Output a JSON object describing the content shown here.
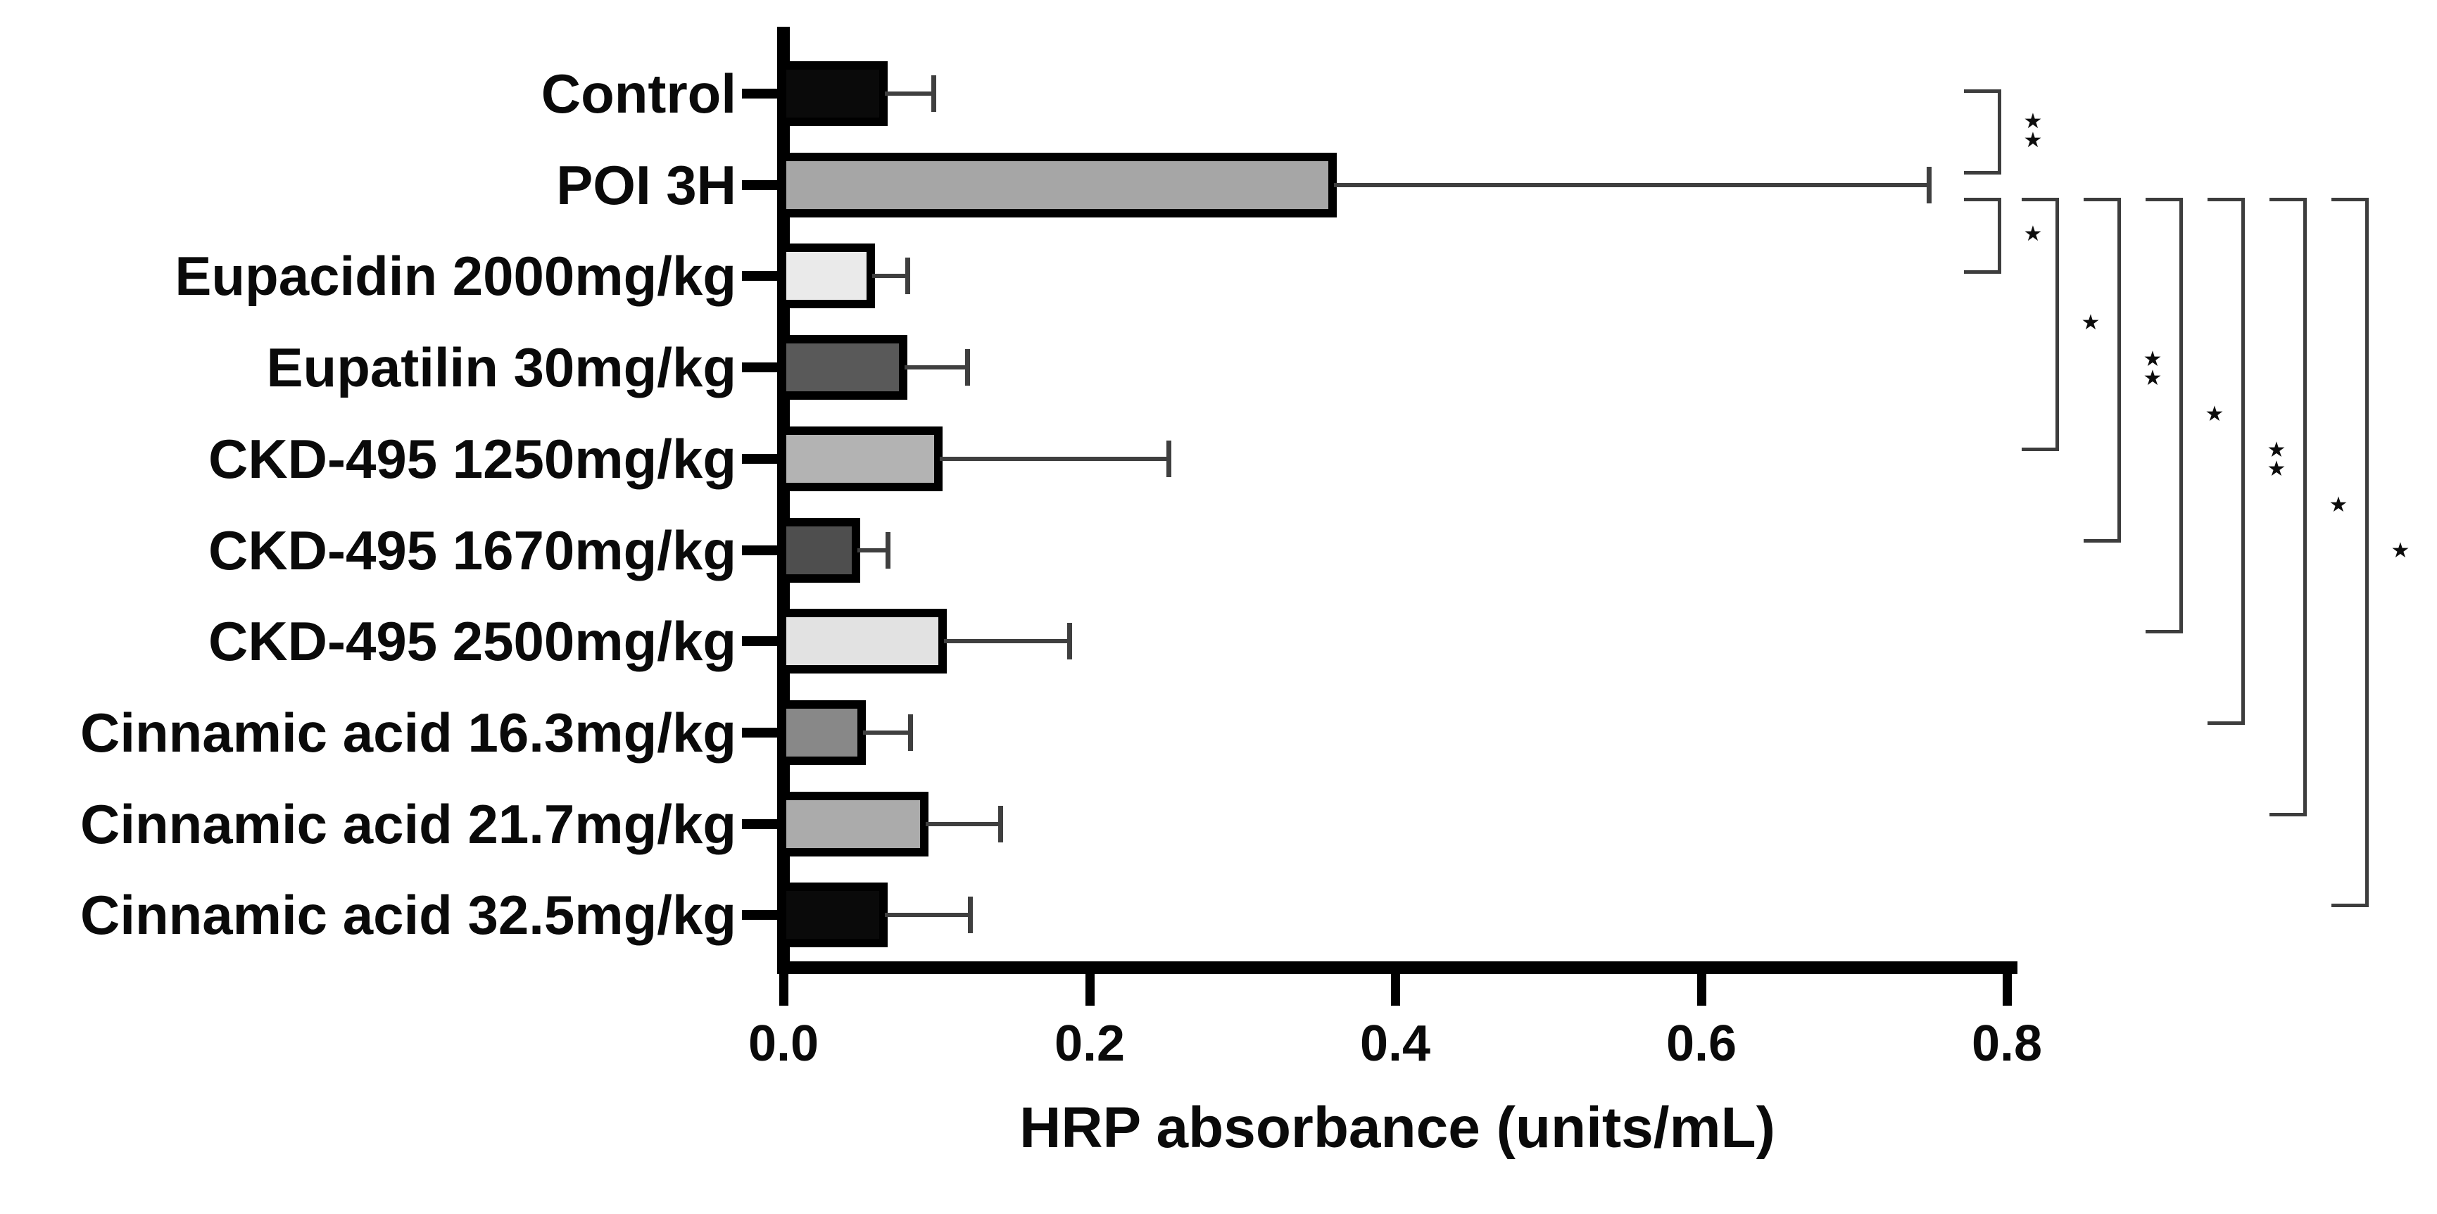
{
  "chart_data": {
    "type": "bar",
    "orientation": "horizontal",
    "title": "",
    "xlabel": "HRP absorbance (units/mL)",
    "ylabel": "",
    "xlim": [
      0,
      0.8
    ],
    "xticks": [
      0.0,
      0.2,
      0.4,
      0.6,
      0.8
    ],
    "xtick_labels": [
      "0.0",
      "0.2",
      "0.4",
      "0.6",
      "0.8"
    ],
    "grid": false,
    "legend": "none",
    "categories": [
      "Control",
      "POI 3H",
      "Eupacidin 2000mg/kg",
      "Eupatilin 30mg/kg",
      "CKD-495 1250mg/kg",
      "CKD-495 1670mg/kg",
      "CKD-495 2500mg/kg",
      "Cinnamic acid 16.3mg/kg",
      "Cinnamic acid 21.7mg/kg",
      "Cinnamic acid 32.5mg/kg"
    ],
    "values": [
      0.068,
      0.362,
      0.06,
      0.081,
      0.104,
      0.05,
      0.107,
      0.054,
      0.095,
      0.068
    ],
    "errors_sd": [
      0.03,
      0.387,
      0.021,
      0.039,
      0.148,
      0.018,
      0.08,
      0.029,
      0.047,
      0.054
    ],
    "error_bar_style": "plus-direction-only-with-cap",
    "bar_colors": [
      "#0a0a0a",
      "#a6a6a6",
      "#eaeaea",
      "#595959",
      "#b3b3b3",
      "#4e4e4e",
      "#e2e2e2",
      "#888888",
      "#ababab",
      "#0a0a0a"
    ],
    "significance": [
      {
        "group1_index": 0,
        "group2_index": 1,
        "label": "**"
      },
      {
        "group1_index": 1,
        "group2_index": 2,
        "label": "*"
      },
      {
        "group1_index": 1,
        "group2_index": 4,
        "label": "*"
      },
      {
        "group1_index": 1,
        "group2_index": 5,
        "label": "**"
      },
      {
        "group1_index": 1,
        "group2_index": 6,
        "label": "*"
      },
      {
        "group1_index": 1,
        "group2_index": 7,
        "label": "**"
      },
      {
        "group1_index": 1,
        "group2_index": 8,
        "label": "*"
      },
      {
        "group1_index": 1,
        "group2_index": 9,
        "label": "*"
      }
    ],
    "star_glyph": "★",
    "colors": {
      "axis": "#000000",
      "bar_border": "#000000",
      "error_line": "#3f3f3f",
      "bracket_line": "#3d3d3d",
      "star": "#0d0d0d",
      "text": "#0a0a0a",
      "background": "#ffffff"
    }
  }
}
